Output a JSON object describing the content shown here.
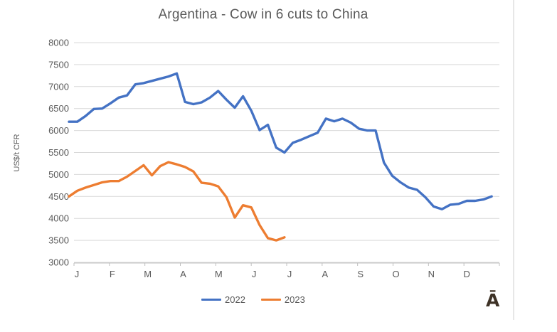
{
  "title": "Argentina - Cow in 6 cuts to China",
  "y_axis": {
    "label": "US$/t CFR",
    "ticks": [
      8000,
      7500,
      7000,
      6500,
      6000,
      5500,
      5000,
      4500,
      4000,
      3500,
      3000
    ]
  },
  "x_axis": {
    "labels": [
      "J",
      "F",
      "M",
      "A",
      "M",
      "J",
      "J",
      "A",
      "S",
      "O",
      "N",
      "D"
    ]
  },
  "legend": [
    {
      "label": "2022",
      "color": "#4472C4"
    },
    {
      "label": "2023",
      "color": "#ED7D31"
    }
  ],
  "watermark": {
    "glyph": "Ā",
    "color": "#3e3226"
  },
  "colors": {
    "grid": "#d9d9d9",
    "axis": "#bfbfbf",
    "text": "#595959",
    "series_2022": "#4472C4",
    "series_2023": "#ED7D31"
  },
  "chart_data": {
    "type": "line",
    "title": "Argentina - Cow in 6 cuts to China",
    "xlabel": "",
    "ylabel": "US$/t CFR",
    "ylim": [
      3000,
      8000
    ],
    "y_tick_step": 500,
    "grid": "horizontal",
    "legend_position": "bottom",
    "x_unit": "weekly points, Jan through Dec",
    "month_labels": [
      "J",
      "F",
      "M",
      "A",
      "M",
      "J",
      "J",
      "A",
      "S",
      "O",
      "N",
      "D"
    ],
    "series": [
      {
        "name": "2022",
        "color": "#4472C4",
        "values": [
          6200,
          6200,
          6330,
          6490,
          6500,
          6620,
          6750,
          6800,
          7050,
          7080,
          7130,
          7180,
          7230,
          7300,
          6650,
          6600,
          6640,
          6750,
          6900,
          6700,
          6520,
          6780,
          6450,
          6010,
          6130,
          5610,
          5500,
          5720,
          5790,
          5870,
          5950,
          6270,
          6210,
          6270,
          6180,
          6040,
          6000,
          6000,
          5270,
          4970,
          4820,
          4700,
          4650,
          4480,
          4270,
          4210,
          4310,
          4330,
          4400,
          4400,
          4430,
          4500
        ]
      },
      {
        "name": "2023",
        "color": "#ED7D31",
        "values": [
          4500,
          4630,
          4700,
          4760,
          4820,
          4850,
          4850,
          4950,
          5080,
          5210,
          4980,
          5190,
          5280,
          5230,
          5170,
          5070,
          4810,
          4790,
          4730,
          4480,
          4020,
          4300,
          4250,
          3850,
          3550,
          3500,
          3570
        ]
      }
    ]
  }
}
